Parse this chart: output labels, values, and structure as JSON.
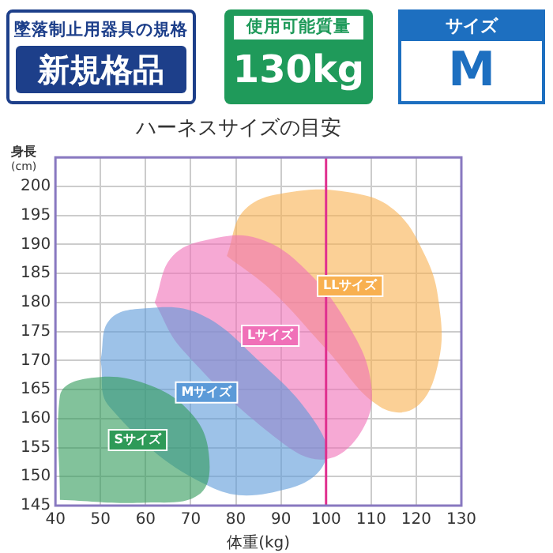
{
  "chart_data": {
    "type": "area",
    "title": "ハーネスサイズの目安",
    "xlabel": "体重(kg)",
    "ylabel": "身長\n(cm)",
    "annotations": [
      "墜落制止用器具の規格",
      "新規格品",
      "使用可能質量",
      "130kg",
      "サイズ",
      "M"
    ],
    "xlim": [
      40,
      130
    ],
    "xticks": [
      40,
      50,
      60,
      70,
      80,
      90,
      100,
      110,
      120,
      130
    ],
    "ylim": [
      145,
      205
    ],
    "yticks": [
      145,
      150,
      155,
      160,
      165,
      170,
      175,
      180,
      185,
      190,
      195,
      200
    ],
    "grid": true,
    "legend": false,
    "marker": "none",
    "ref_lines": [
      {
        "axis": "x",
        "value": 100,
        "color": "#e0308f"
      }
    ],
    "series": [
      {
        "name": "Sサイズ",
        "color": "#2e9a58",
        "x": [
          41,
          41,
          48,
          60,
          70,
          74,
          72,
          60
        ],
        "values": [
          146,
          164,
          167,
          166,
          161,
          154,
          147,
          145.5
        ]
      },
      {
        "name": "Mサイズ",
        "color": "#5b9ad8",
        "x": [
          50,
          52,
          60,
          72,
          85,
          97,
          100,
          92,
          75,
          52
        ],
        "values": [
          170,
          177,
          179,
          178,
          170,
          160,
          153,
          148,
          148,
          162
        ]
      },
      {
        "name": "Lサイズ",
        "color": "#f070b8",
        "x": [
          62,
          66,
          75,
          85,
          95,
          105,
          110,
          108,
          100,
          90,
          68
        ],
        "values": [
          180,
          188,
          191,
          191,
          186,
          176,
          166,
          158,
          153,
          156,
          172
        ]
      },
      {
        "name": "LLサイズ",
        "color": "#f8b050",
        "x": [
          78,
          82,
          92,
          105,
          115,
          122,
          125,
          125,
          120,
          112,
          100,
          88
        ],
        "values": [
          188,
          196,
          199,
          199,
          196,
          188,
          180,
          170,
          162,
          162,
          172,
          182
        ]
      }
    ]
  }
}
